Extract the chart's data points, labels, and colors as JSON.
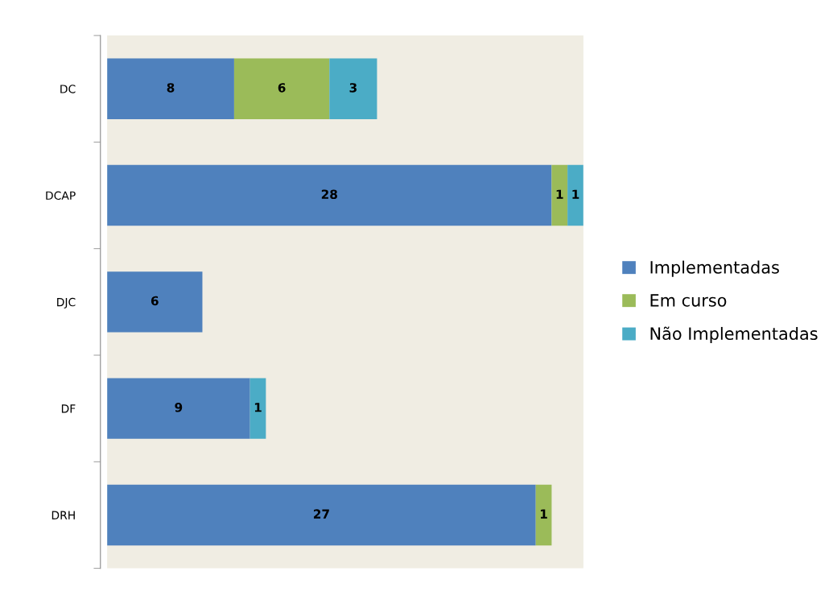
{
  "chart_data": {
    "type": "bar",
    "orientation": "horizontal",
    "stacked": true,
    "data_labels": true,
    "legend": "right",
    "grid": false,
    "categories": [
      "DC",
      "DCAP",
      "DJC",
      "DF",
      "DRH"
    ],
    "series": [
      {
        "name": "Implementadas",
        "color": "#4f81bd",
        "values": [
          8,
          28,
          6,
          9,
          27
        ]
      },
      {
        "name": "Em curso",
        "color": "#9bbb59",
        "values": [
          6,
          1,
          null,
          null,
          1
        ]
      },
      {
        "name": "Não Implementadas",
        "color": "#4bacc6",
        "values": [
          3,
          1,
          null,
          1,
          null
        ]
      }
    ]
  }
}
